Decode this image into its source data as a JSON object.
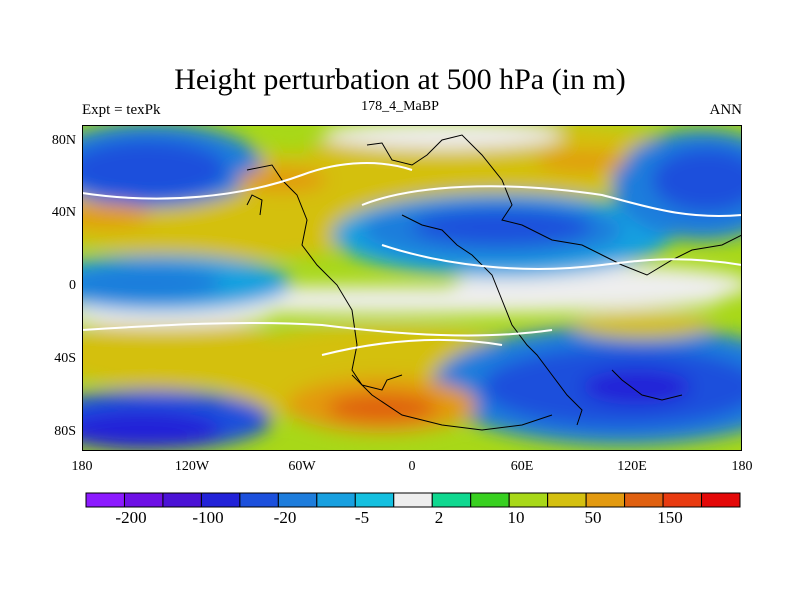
{
  "figure": {
    "title": "Height perturbation at 500 hPa (in m)",
    "left_label": "Expt = texPk",
    "center_label": "178_4_MaBP",
    "right_label": "ANN"
  },
  "axes": {
    "lat_ticks": [
      "80N",
      "40N",
      "0",
      "40S",
      "80S"
    ],
    "lon_ticks": [
      "180",
      "120W",
      "60W",
      "0",
      "60E",
      "120E",
      "180"
    ]
  },
  "colorbar": {
    "colors": [
      "#8c1aff",
      "#6e10e6",
      "#4b12d6",
      "#2222d8",
      "#1c50dc",
      "#1e7ddc",
      "#18a0e0",
      "#15c0e0",
      "#eeeeee",
      "#10d890",
      "#38d020",
      "#a8d818",
      "#d4c010",
      "#e39a10",
      "#e06010",
      "#e83a10",
      "#e40808"
    ],
    "tick_labels": [
      "-200",
      "-100",
      "-20",
      "-5",
      "2",
      "10",
      "50",
      "150"
    ]
  }
}
